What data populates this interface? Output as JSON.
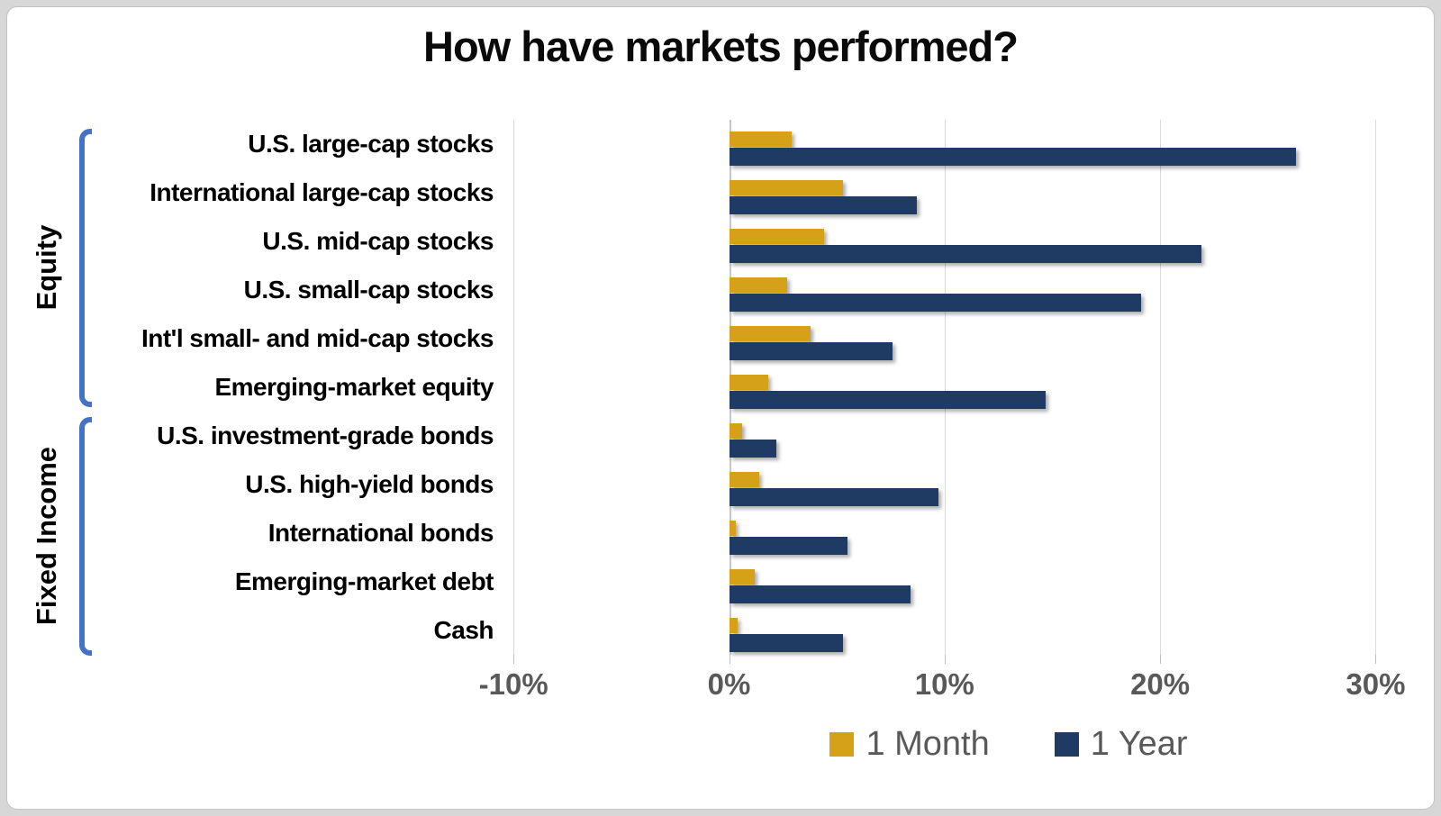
{
  "chart_data": {
    "type": "bar",
    "orientation": "horizontal",
    "title": "How have markets performed?",
    "categories": [
      "U.S. large-cap stocks",
      "International large-cap stocks",
      "U.S. mid-cap stocks",
      "U.S. small-cap stocks",
      "Int'l small- and mid-cap stocks",
      "Emerging-market equity",
      "U.S. investment-grade bonds",
      "U.S. high-yield bonds",
      "International bonds",
      "Emerging-market debt",
      "Cash"
    ],
    "series": [
      {
        "name": "1 Month",
        "color": "#D5A118",
        "values": [
          2.9,
          5.3,
          4.4,
          2.7,
          3.8,
          1.8,
          0.6,
          1.4,
          0.3,
          1.2,
          0.4
        ]
      },
      {
        "name": "1 Year",
        "color": "#1F3A63",
        "values": [
          26.3,
          8.7,
          21.9,
          19.1,
          7.6,
          14.7,
          2.2,
          9.7,
          5.5,
          8.4,
          5.3
        ]
      }
    ],
    "category_groups": [
      {
        "label": "Equity",
        "start": 0,
        "end": 5
      },
      {
        "label": "Fixed Income",
        "start": 6,
        "end": 10
      }
    ],
    "x_axis": {
      "tick_labels": [
        "-10%",
        "0%",
        "10%",
        "20%",
        "30%"
      ],
      "tick_values": [
        -10,
        0,
        10,
        20,
        30
      ],
      "min": -10,
      "max": 30,
      "unit": "percent"
    },
    "grid": true,
    "legend_position": "bottom",
    "colors": {
      "one_month": "#D5A118",
      "one_year": "#1F3A63",
      "bracket_blue": "#4472C4",
      "axis_text": "#595959",
      "gridline": "#D9D9D9",
      "category_text": "#000000"
    }
  }
}
